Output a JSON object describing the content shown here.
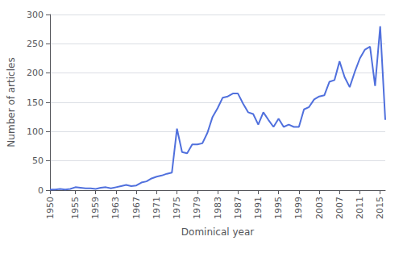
{
  "chart_data": {
    "type": "line",
    "xlabel": "Dominical year",
    "ylabel": "Number of articles",
    "x": [
      1950,
      1951,
      1952,
      1953,
      1954,
      1955,
      1956,
      1957,
      1958,
      1959,
      1960,
      1961,
      1962,
      1963,
      1964,
      1965,
      1966,
      1967,
      1968,
      1969,
      1970,
      1971,
      1972,
      1973,
      1974,
      1975,
      1976,
      1977,
      1978,
      1979,
      1980,
      1981,
      1982,
      1983,
      1984,
      1985,
      1986,
      1987,
      1988,
      1989,
      1990,
      1991,
      1992,
      1993,
      1994,
      1995,
      1996,
      1997,
      1998,
      1999,
      2000,
      2001,
      2002,
      2003,
      2004,
      2005,
      2006,
      2007,
      2008,
      2009,
      2010,
      2011,
      2012,
      2013,
      2014,
      2015,
      2016
    ],
    "values": [
      1,
      1,
      2,
      1,
      2,
      5,
      4,
      3,
      3,
      2,
      4,
      5,
      3,
      5,
      7,
      9,
      7,
      8,
      13,
      15,
      20,
      23,
      25,
      28,
      30,
      105,
      65,
      63,
      78,
      78,
      80,
      98,
      125,
      140,
      158,
      160,
      165,
      165,
      148,
      133,
      130,
      112,
      133,
      120,
      108,
      122,
      108,
      112,
      108,
      108,
      138,
      142,
      155,
      160,
      162,
      185,
      188,
      220,
      193,
      176,
      202,
      225,
      240,
      245,
      178,
      280,
      120
    ],
    "xlim": [
      1950,
      2016
    ],
    "ylim": [
      0,
      300
    ],
    "xticks": [
      1950,
      1955,
      1959,
      1963,
      1967,
      1971,
      1975,
      1979,
      1983,
      1987,
      1991,
      1995,
      1999,
      2003,
      2007,
      2011,
      2015
    ],
    "yticks": [
      0,
      50,
      100,
      150,
      200,
      250,
      300
    ],
    "grid": true
  }
}
